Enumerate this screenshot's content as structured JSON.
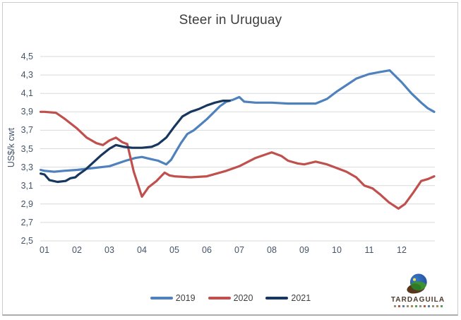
{
  "title": "Steer in Uruguay",
  "chart_data": {
    "type": "line",
    "title": "Steer in Uruguay",
    "xlabel": "",
    "ylabel": "US$/k cwt",
    "ylim": [
      2.5,
      4.5
    ],
    "y_step": 0.2,
    "xlim": [
      1,
      13
    ],
    "grid": true,
    "grid_color": "#d9d9d9",
    "legend_position": "bottom-center",
    "x_tick_labels": [
      "01",
      "02",
      "03",
      "04",
      "05",
      "06",
      "07",
      "08",
      "09",
      "10",
      "11",
      "12"
    ],
    "y_tick_labels": [
      "4,5",
      "4,3",
      "4,1",
      "3,9",
      "3,7",
      "3,5",
      "3,3",
      "3,1",
      "2,9",
      "2,7",
      "2,5"
    ],
    "series": [
      {
        "name": "2019",
        "color": "#4f81bd",
        "points": [
          [
            0.88,
            3.27
          ],
          [
            1.0,
            3.26
          ],
          [
            1.3,
            3.25
          ],
          [
            1.6,
            3.26
          ],
          [
            2.0,
            3.27
          ],
          [
            2.5,
            3.29
          ],
          [
            3.0,
            3.31
          ],
          [
            3.5,
            3.37
          ],
          [
            3.8,
            3.4
          ],
          [
            4.0,
            3.41
          ],
          [
            4.25,
            3.39
          ],
          [
            4.5,
            3.37
          ],
          [
            4.75,
            3.33
          ],
          [
            4.9,
            3.38
          ],
          [
            5.0,
            3.44
          ],
          [
            5.2,
            3.56
          ],
          [
            5.4,
            3.66
          ],
          [
            5.6,
            3.7
          ],
          [
            5.8,
            3.76
          ],
          [
            6.0,
            3.82
          ],
          [
            6.2,
            3.89
          ],
          [
            6.4,
            3.96
          ],
          [
            6.6,
            4.01
          ],
          [
            6.8,
            4.03
          ],
          [
            7.0,
            4.06
          ],
          [
            7.15,
            4.01
          ],
          [
            7.5,
            4.0
          ],
          [
            8.0,
            4.0
          ],
          [
            8.5,
            3.99
          ],
          [
            9.0,
            3.99
          ],
          [
            9.35,
            3.99
          ],
          [
            9.7,
            4.04
          ],
          [
            10.0,
            4.12
          ],
          [
            10.3,
            4.19
          ],
          [
            10.6,
            4.26
          ],
          [
            11.0,
            4.31
          ],
          [
            11.3,
            4.33
          ],
          [
            11.63,
            4.35
          ],
          [
            11.8,
            4.29
          ],
          [
            12.0,
            4.22
          ],
          [
            12.3,
            4.1
          ],
          [
            12.6,
            4.0
          ],
          [
            12.8,
            3.94
          ],
          [
            13.0,
            3.9
          ]
        ]
      },
      {
        "name": "2020",
        "color": "#c0504d",
        "points": [
          [
            0.88,
            3.9
          ],
          [
            1.0,
            3.9
          ],
          [
            1.35,
            3.89
          ],
          [
            1.6,
            3.83
          ],
          [
            2.0,
            3.72
          ],
          [
            2.3,
            3.62
          ],
          [
            2.6,
            3.56
          ],
          [
            2.8,
            3.54
          ],
          [
            3.0,
            3.59
          ],
          [
            3.2,
            3.62
          ],
          [
            3.4,
            3.57
          ],
          [
            3.55,
            3.55
          ],
          [
            3.75,
            3.25
          ],
          [
            4.0,
            2.98
          ],
          [
            4.2,
            3.08
          ],
          [
            4.45,
            3.15
          ],
          [
            4.7,
            3.24
          ],
          [
            4.85,
            3.21
          ],
          [
            5.0,
            3.2
          ],
          [
            5.5,
            3.19
          ],
          [
            6.0,
            3.2
          ],
          [
            6.3,
            3.23
          ],
          [
            6.6,
            3.26
          ],
          [
            7.0,
            3.31
          ],
          [
            7.5,
            3.4
          ],
          [
            8.0,
            3.46
          ],
          [
            8.3,
            3.42
          ],
          [
            8.5,
            3.37
          ],
          [
            8.8,
            3.34
          ],
          [
            9.0,
            3.33
          ],
          [
            9.35,
            3.36
          ],
          [
            9.7,
            3.33
          ],
          [
            10.0,
            3.29
          ],
          [
            10.3,
            3.25
          ],
          [
            10.6,
            3.19
          ],
          [
            10.85,
            3.1
          ],
          [
            11.1,
            3.07
          ],
          [
            11.35,
            3.0
          ],
          [
            11.6,
            2.92
          ],
          [
            11.9,
            2.85
          ],
          [
            12.1,
            2.9
          ],
          [
            12.35,
            3.02
          ],
          [
            12.6,
            3.15
          ],
          [
            12.8,
            3.17
          ],
          [
            13.0,
            3.2
          ]
        ]
      },
      {
        "name": "2021",
        "color": "#17375e",
        "points": [
          [
            0.88,
            3.23
          ],
          [
            1.0,
            3.22
          ],
          [
            1.15,
            3.16
          ],
          [
            1.4,
            3.14
          ],
          [
            1.65,
            3.15
          ],
          [
            1.8,
            3.18
          ],
          [
            1.95,
            3.19
          ],
          [
            2.05,
            3.22
          ],
          [
            2.25,
            3.27
          ],
          [
            2.5,
            3.35
          ],
          [
            2.75,
            3.43
          ],
          [
            3.0,
            3.5
          ],
          [
            3.2,
            3.54
          ],
          [
            3.45,
            3.52
          ],
          [
            3.7,
            3.51
          ],
          [
            4.0,
            3.51
          ],
          [
            4.3,
            3.52
          ],
          [
            4.5,
            3.55
          ],
          [
            4.75,
            3.62
          ],
          [
            5.0,
            3.74
          ],
          [
            5.25,
            3.85
          ],
          [
            5.5,
            3.9
          ],
          [
            5.75,
            3.93
          ],
          [
            6.0,
            3.97
          ],
          [
            6.25,
            4.0
          ],
          [
            6.5,
            4.02
          ],
          [
            6.7,
            4.02
          ]
        ]
      }
    ]
  },
  "logo": {
    "text": "TARDAGUILA",
    "text_color": "#4e382a",
    "globe_colors": {
      "sky_top": "#3c77c8",
      "sky_bottom": "#123b80",
      "hill": "#3c9130",
      "hill_dark": "#2f7a26",
      "sun": "#ede93f",
      "base": "#573619"
    },
    "tagline_mark_colors": [
      "#9a8b7a",
      "#b05a4a",
      "#5a7ba0",
      "#9a8b7a",
      "#b08a4a",
      "#5a9a6a",
      "#9a8b7a",
      "#b05a4a",
      "#5a7ba0",
      "#9a8b7a",
      "#b08a4a",
      "#5a9a6a"
    ]
  }
}
